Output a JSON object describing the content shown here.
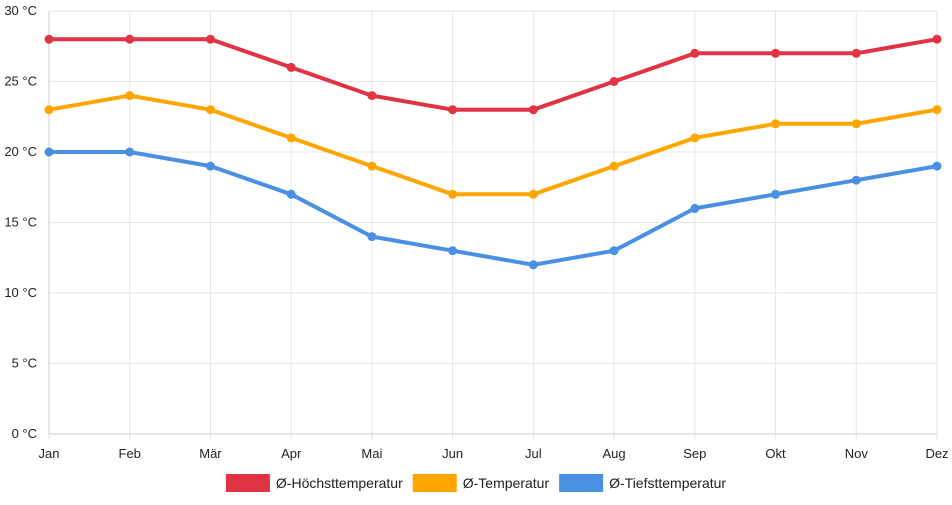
{
  "chart_data": {
    "type": "line",
    "title": "",
    "xlabel": "",
    "ylabel": "",
    "categories": [
      "Jan",
      "Feb",
      "Mär",
      "Apr",
      "Mai",
      "Jun",
      "Jul",
      "Aug",
      "Sep",
      "Okt",
      "Nov",
      "Dez"
    ],
    "ylim": [
      0,
      30
    ],
    "y_ticks": [
      0,
      5,
      10,
      15,
      20,
      25,
      30
    ],
    "y_tick_labels": [
      "0 °C",
      "5 °C",
      "10 °C",
      "15 °C",
      "20 °C",
      "25 °C",
      "30 °C"
    ],
    "grid": true,
    "legend_position": "bottom",
    "series": [
      {
        "name": "Ø-Höchsttemperatur",
        "color": "#e03444",
        "values": [
          28,
          28,
          28,
          26,
          24,
          23,
          23,
          25,
          27,
          27,
          27,
          28
        ]
      },
      {
        "name": "Ø-Temperatur",
        "color": "#ffa500",
        "values": [
          23,
          24,
          23,
          21,
          19,
          17,
          17,
          19,
          21,
          22,
          22,
          23
        ]
      },
      {
        "name": "Ø-Tiefsttemperatur",
        "color": "#4a90e2",
        "values": [
          20,
          20,
          19,
          17,
          14,
          13,
          12,
          13,
          16,
          17,
          18,
          19
        ]
      }
    ]
  }
}
